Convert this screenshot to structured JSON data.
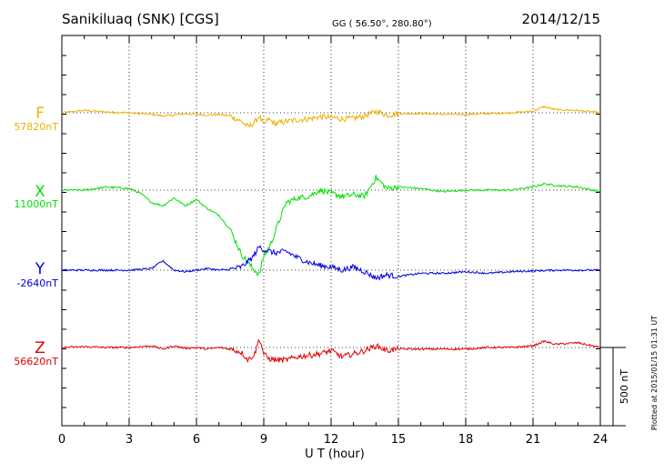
{
  "header": {
    "station": "Sanikiluaq (SNK)  [CGS]",
    "coords": "GG ( 56.50°, 280.80°)",
    "date": "2014/12/15"
  },
  "footer": {
    "plotted": "Plotted at 2015/01/15 01:31  UT"
  },
  "chart_data": {
    "type": "line",
    "title": "Sanikiluaq (SNK)  [CGS]",
    "xlabel": "U T (hour)",
    "xlim": [
      0,
      24
    ],
    "xticks": [
      "0",
      "3",
      "6",
      "9",
      "12",
      "15",
      "18",
      "21",
      "24"
    ],
    "scale_bar": {
      "label": "500 nT",
      "value_nT": 500
    },
    "series": [
      {
        "name": "F",
        "baseline_label": "57820nT",
        "color": "#f0b000",
        "x": [
          0,
          1,
          2,
          3,
          4,
          4.5,
          5,
          5.5,
          6,
          6.5,
          7,
          7.5,
          8,
          8.3,
          8.6,
          8.8,
          9,
          9.2,
          9.5,
          10,
          10.5,
          11,
          11.5,
          12,
          12.5,
          13,
          13.5,
          14,
          14.5,
          15,
          16,
          17,
          18,
          19,
          20,
          21,
          21.5,
          22,
          23,
          24
        ],
        "values": [
          0,
          15,
          5,
          0,
          -10,
          -20,
          -15,
          -5,
          -10,
          -15,
          -10,
          -20,
          -55,
          -90,
          -60,
          -20,
          -80,
          -40,
          -70,
          -55,
          -45,
          -40,
          -25,
          -30,
          -40,
          -35,
          -20,
          10,
          -15,
          -5,
          -5,
          -10,
          -10,
          -5,
          0,
          10,
          40,
          20,
          15,
          0
        ]
      },
      {
        "name": "X",
        "baseline_label": "11000nT",
        "color": "#00e000",
        "x": [
          0,
          1,
          2,
          3,
          3.5,
          4,
          4.5,
          5,
          5.5,
          6,
          6.5,
          7,
          7.5,
          8,
          8.5,
          8.8,
          9,
          9.3,
          9.6,
          10,
          10.5,
          11,
          11.5,
          12,
          12.5,
          13,
          13.5,
          14,
          14.5,
          15,
          16,
          17,
          18,
          19,
          20,
          21,
          21.5,
          22,
          23,
          24
        ],
        "values": [
          0,
          0,
          20,
          10,
          -20,
          -80,
          -100,
          -50,
          -100,
          -60,
          -120,
          -160,
          -250,
          -410,
          -500,
          -540,
          -420,
          -350,
          -230,
          -80,
          -50,
          -40,
          0,
          -20,
          -40,
          -30,
          -40,
          80,
          10,
          20,
          10,
          -10,
          0,
          0,
          0,
          20,
          40,
          30,
          20,
          -10
        ]
      },
      {
        "name": "Y",
        "baseline_label": "-2640nT",
        "color": "#0000e0",
        "x": [
          0,
          1,
          2,
          3,
          4,
          4.5,
          5,
          5.5,
          6,
          6.5,
          7,
          7.5,
          8,
          8.5,
          8.8,
          9,
          9.5,
          10,
          10.5,
          11,
          11.5,
          12,
          12.5,
          13,
          13.5,
          14,
          14.5,
          15,
          16,
          17,
          18,
          19,
          20,
          21,
          22,
          23,
          24
        ],
        "values": [
          0,
          0,
          0,
          0,
          10,
          60,
          0,
          -10,
          0,
          10,
          0,
          5,
          20,
          80,
          150,
          130,
          110,
          120,
          80,
          50,
          30,
          20,
          0,
          20,
          -10,
          -50,
          -30,
          -40,
          -20,
          -20,
          -10,
          -20,
          -10,
          -5,
          0,
          0,
          0
        ]
      },
      {
        "name": "Z",
        "baseline_label": "56620nT",
        "color": "#e00000",
        "x": [
          0,
          1,
          2,
          3,
          4,
          4.5,
          5,
          5.5,
          6,
          6.5,
          7,
          7.5,
          8,
          8.3,
          8.6,
          8.8,
          9,
          9.2,
          9.5,
          10,
          10.5,
          11,
          11.5,
          12,
          12.5,
          13,
          13.5,
          14,
          14.5,
          15,
          16,
          17,
          18,
          19,
          20,
          21,
          21.5,
          22,
          23,
          24
        ],
        "values": [
          0,
          5,
          0,
          0,
          10,
          -10,
          10,
          -5,
          0,
          -10,
          0,
          -10,
          -30,
          -80,
          -40,
          60,
          -40,
          -70,
          -80,
          -80,
          -60,
          -50,
          -40,
          -20,
          -60,
          -40,
          -20,
          10,
          -20,
          -10,
          -10,
          -10,
          -10,
          0,
          0,
          10,
          40,
          20,
          30,
          0
        ]
      }
    ]
  }
}
